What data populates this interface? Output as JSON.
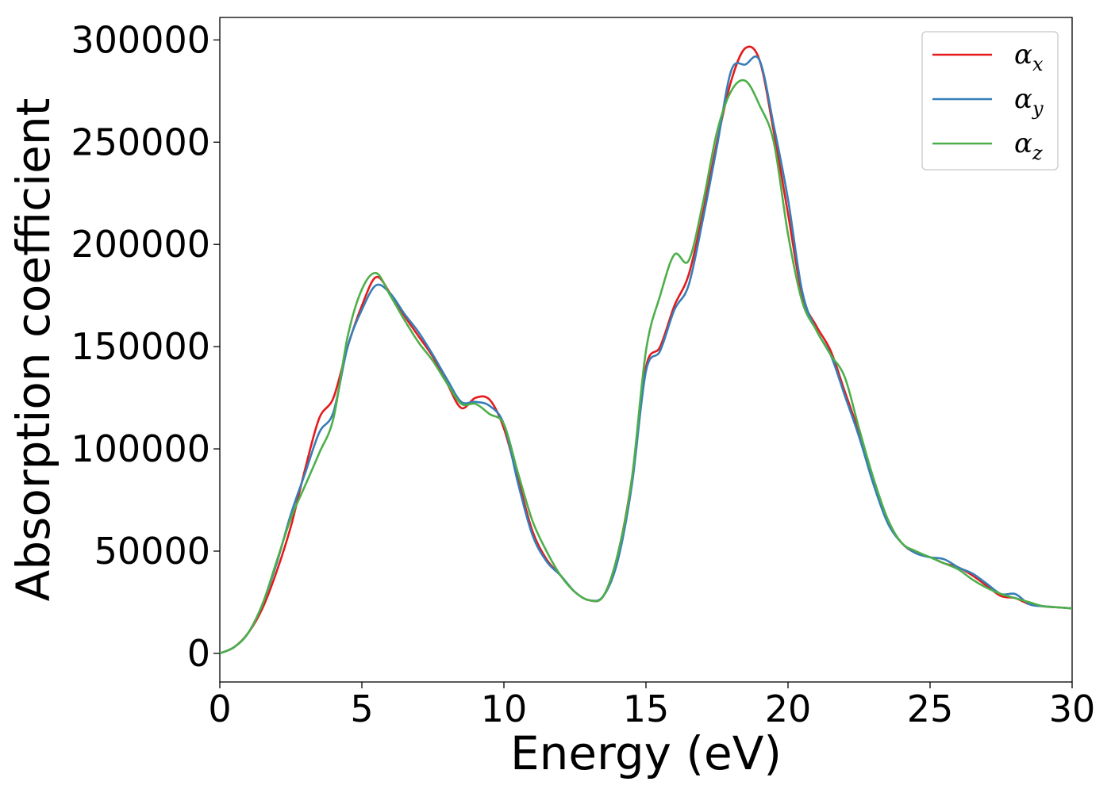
{
  "chart_data": {
    "type": "line",
    "xlabel": "Energy (eV)",
    "ylabel": "Absorption coefficient",
    "xlim": [
      0,
      30
    ],
    "ylim": [
      -14000,
      311000
    ],
    "xticks": [
      0,
      5,
      10,
      15,
      20,
      25,
      30
    ],
    "yticks": [
      0,
      50000,
      100000,
      150000,
      200000,
      250000,
      300000
    ],
    "grid": false,
    "legend_position": "top-right",
    "series": [
      {
        "name": "αx",
        "symbol": "α",
        "subscript": "x",
        "color": "#e41a1c",
        "x": [
          0,
          0.5,
          1,
          1.5,
          2,
          2.5,
          3,
          3.5,
          4,
          4.5,
          5,
          5.5,
          6,
          6.5,
          7,
          7.5,
          8,
          8.5,
          9,
          9.5,
          10,
          10.5,
          11,
          11.5,
          12,
          12.5,
          13,
          13.5,
          14,
          14.5,
          15,
          15.5,
          16,
          16.5,
          17,
          17.5,
          18,
          18.5,
          19,
          19.5,
          20,
          20.5,
          21,
          21.5,
          22,
          22.5,
          23,
          23.5,
          24,
          24.5,
          25,
          25.5,
          26,
          26.5,
          27,
          27.5,
          28,
          28.5,
          29,
          29.5,
          30
        ],
        "y": [
          0,
          3000,
          10000,
          22000,
          40000,
          62000,
          90000,
          115000,
          125000,
          150000,
          170000,
          184000,
          176000,
          165000,
          155000,
          145000,
          132000,
          120000,
          125000,
          124000,
          110000,
          85000,
          60000,
          46000,
          38000,
          30000,
          26000,
          28000,
          48000,
          85000,
          140000,
          150000,
          170000,
          185000,
          215000,
          250000,
          280000,
          296000,
          290000,
          255000,
          215000,
          175000,
          160000,
          148000,
          128000,
          108000,
          85000,
          65000,
          54000,
          49000,
          47000,
          44000,
          42000,
          38000,
          33000,
          28000,
          27000,
          24000,
          23000,
          22500,
          22000
        ]
      },
      {
        "name": "αy",
        "symbol": "α",
        "subscript": "y",
        "color": "#377eb8",
        "x": [
          0,
          0.5,
          1,
          1.5,
          2,
          2.5,
          3,
          3.5,
          4,
          4.5,
          5,
          5.5,
          6,
          6.5,
          7,
          7.5,
          8,
          8.5,
          9,
          9.5,
          10,
          10.5,
          11,
          11.5,
          12,
          12.5,
          13,
          13.5,
          14,
          14.5,
          15,
          15.5,
          16,
          16.5,
          17,
          17.5,
          18,
          18.5,
          19,
          19.5,
          20,
          20.5,
          21,
          21.5,
          22,
          22.5,
          23,
          23.5,
          24,
          24.5,
          25,
          25.5,
          26,
          26.5,
          27,
          27.5,
          28,
          28.5,
          29,
          29.5,
          30
        ],
        "y": [
          0,
          3000,
          10000,
          24000,
          44000,
          68000,
          88000,
          108000,
          118000,
          150000,
          168000,
          180000,
          176000,
          166000,
          157000,
          146000,
          134000,
          123000,
          123000,
          121000,
          112000,
          83000,
          58000,
          45000,
          38000,
          30000,
          26000,
          28000,
          45000,
          82000,
          138000,
          148000,
          168000,
          180000,
          212000,
          248000,
          285000,
          288000,
          290000,
          258000,
          222000,
          177000,
          158000,
          146000,
          126000,
          106000,
          83000,
          64000,
          54000,
          49000,
          47000,
          46000,
          42000,
          39000,
          34000,
          29000,
          29000,
          24000,
          23000,
          22500,
          22000
        ]
      },
      {
        "name": "αz",
        "symbol": "α",
        "subscript": "z",
        "color": "#4daf4a",
        "x": [
          0,
          0.5,
          1,
          1.5,
          2,
          2.5,
          3,
          3.5,
          4,
          4.5,
          5,
          5.5,
          6,
          6.5,
          7,
          7.5,
          8,
          8.5,
          9,
          9.5,
          10,
          10.5,
          11,
          11.5,
          12,
          12.5,
          13,
          13.5,
          14,
          14.5,
          15,
          15.5,
          16,
          16.5,
          17,
          17.5,
          18,
          18.5,
          19,
          19.5,
          20,
          20.5,
          21,
          21.5,
          22,
          22.5,
          23,
          23.5,
          24,
          24.5,
          25,
          25.5,
          26,
          26.5,
          27,
          27.5,
          28,
          28.5,
          29,
          29.5,
          30
        ],
        "y": [
          0,
          3000,
          10000,
          24000,
          45000,
          66000,
          82000,
          98000,
          115000,
          155000,
          178000,
          186000,
          175000,
          163000,
          152000,
          143000,
          132000,
          122000,
          122000,
          117000,
          112000,
          88000,
          65000,
          50000,
          38000,
          30000,
          26000,
          28000,
          48000,
          85000,
          148000,
          175000,
          195000,
          192000,
          220000,
          255000,
          275000,
          280000,
          268000,
          250000,
          205000,
          172000,
          158000,
          146000,
          135000,
          110000,
          86000,
          66000,
          54000,
          50000,
          47000,
          44000,
          41000,
          36000,
          32000,
          29000,
          27000,
          25000,
          23000,
          22500,
          22000
        ]
      }
    ]
  }
}
